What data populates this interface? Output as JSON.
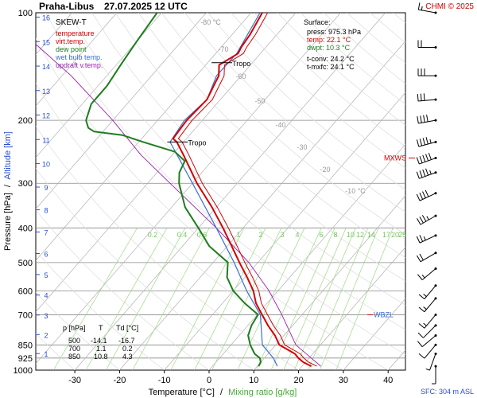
{
  "header": {
    "station": "Praha-Libus",
    "datetime": "27.07.2025 12 UTC",
    "credit": "CHMI © 2025"
  },
  "legend": {
    "title": "SKEW-T",
    "items": [
      {
        "label": "temperature",
        "color": "#d40000"
      },
      {
        "label": "virt.temp.",
        "color": "#d40000"
      },
      {
        "label": "dew point",
        "color": "#1e7d1e"
      },
      {
        "label": "wet bulb temp.",
        "color": "#3a6fd8"
      },
      {
        "label": "updraft v.temp.",
        "color": "#9b1fb0"
      }
    ]
  },
  "surface": {
    "title": "Surface:",
    "press": "press: 975.3 hPa",
    "temp": "temp: 22.1 °C",
    "dwpt": "dwpt: 10.3 °C",
    "tconv": "t-conv: 24.2 °C",
    "tmxfc": "t-mxfc: 24.1 °C"
  },
  "levels_table": {
    "headers": [
      "p [hPa]",
      "T",
      "Td [°C]"
    ],
    "rows": [
      [
        "500",
        "-14.1",
        "-16.7"
      ],
      [
        "700",
        "1.1",
        "0.2"
      ],
      [
        "850",
        "10.8",
        "4.3"
      ]
    ]
  },
  "annotations": {
    "tropo": "Tropo",
    "mxws": "MXWS",
    "wbzl": "WBZL",
    "sfc": "SFC: 304 m ASL"
  },
  "chart_data": {
    "type": "skew-t",
    "xlabel_main": "Temperature [°C]",
    "xlabel_sep": "/",
    "xlabel_mix": "Mixing ratio [g/kg]",
    "ylabel_main": "Pressure [hPa]",
    "ylabel_sep": "/",
    "ylabel_alt": "Altitude [km]",
    "x_ticks": [
      -30,
      -20,
      -10,
      0,
      10,
      20,
      30,
      40
    ],
    "p_ticks": [
      100,
      200,
      300,
      400,
      500,
      600,
      700,
      850,
      925,
      1000
    ],
    "km_ticks": [
      1,
      2,
      3,
      4,
      5,
      6,
      7,
      8,
      9,
      10,
      11,
      12,
      13,
      14,
      15,
      16
    ],
    "isotherm_labels": [
      "-80 °C",
      "-70",
      "-60",
      "-50",
      "-40",
      "-30",
      "-20",
      "-10 °C"
    ],
    "mixing_ratio_labels": [
      "0.2",
      "0.4",
      "0.6",
      "1",
      "2",
      "3",
      "4",
      "6",
      "8",
      "10",
      "12",
      "14",
      "17",
      "20",
      "25"
    ],
    "colors": {
      "temperature": "#d40000",
      "dewpoint": "#1e7d1e",
      "wetbulb": "#3a6fd8",
      "updraft": "#9b1fb0",
      "mixing": "#9fd88a",
      "isobar": "#888888",
      "isotherm": "#b0b0b0"
    },
    "temperature": [
      [
        975,
        22.1
      ],
      [
        950,
        19.5
      ],
      [
        925,
        17.6
      ],
      [
        900,
        16.0
      ],
      [
        850,
        10.8
      ],
      [
        800,
        8.0
      ],
      [
        750,
        4.5
      ],
      [
        700,
        1.1
      ],
      [
        650,
        -2.5
      ],
      [
        600,
        -5.5
      ],
      [
        550,
        -9.5
      ],
      [
        500,
        -14.1
      ],
      [
        450,
        -19.0
      ],
      [
        400,
        -24.5
      ],
      [
        350,
        -31.0
      ],
      [
        300,
        -39.0
      ],
      [
        250,
        -47.5
      ],
      [
        230,
        -51.5
      ],
      [
        225,
        -53.0
      ],
      [
        200,
        -53.5
      ],
      [
        175,
        -53.0
      ],
      [
        150,
        -55.0
      ],
      [
        140,
        -57.0
      ],
      [
        130,
        -55.0
      ],
      [
        125,
        -55.5
      ],
      [
        115,
        -56.0
      ],
      [
        100,
        -57.5
      ]
    ],
    "dewpoint": [
      [
        975,
        10.3
      ],
      [
        950,
        10.0
      ],
      [
        925,
        9.0
      ],
      [
        900,
        7.0
      ],
      [
        850,
        4.3
      ],
      [
        800,
        2.0
      ],
      [
        750,
        0.8
      ],
      [
        700,
        0.2
      ],
      [
        650,
        -5.0
      ],
      [
        600,
        -10.0
      ],
      [
        550,
        -14.0
      ],
      [
        500,
        -16.7
      ],
      [
        450,
        -24.0
      ],
      [
        400,
        -30.0
      ],
      [
        350,
        -37.0
      ],
      [
        300,
        -43.0
      ],
      [
        280,
        -45.0
      ],
      [
        260,
        -46.0
      ],
      [
        245,
        -50.0
      ],
      [
        230,
        -59.0
      ],
      [
        220,
        -65.0
      ],
      [
        215,
        -72.0
      ],
      [
        210,
        -74.0
      ],
      [
        200,
        -76.0
      ],
      [
        180,
        -78.0
      ],
      [
        160,
        -78.0
      ],
      [
        140,
        -79.0
      ],
      [
        120,
        -80.0
      ],
      [
        100,
        -81.0
      ]
    ],
    "wetbulb": [
      [
        975,
        14.5
      ],
      [
        925,
        12.0
      ],
      [
        850,
        7.0
      ],
      [
        700,
        0.7
      ],
      [
        600,
        -7.0
      ],
      [
        500,
        -15.3
      ],
      [
        400,
        -26.0
      ],
      [
        300,
        -40.0
      ],
      [
        230,
        -53.0
      ],
      [
        200,
        -54.0
      ],
      [
        175,
        -53.0
      ],
      [
        150,
        -55.5
      ],
      [
        130,
        -55.3
      ],
      [
        100,
        -58.0
      ]
    ],
    "updraft": [
      [
        975,
        24.2
      ],
      [
        850,
        14.5
      ],
      [
        700,
        5.5
      ],
      [
        600,
        -2.0
      ],
      [
        500,
        -12.0
      ],
      [
        400,
        -26.0
      ],
      [
        300,
        -45.0
      ],
      [
        250,
        -57.0
      ],
      [
        200,
        -70.0
      ],
      [
        150,
        -88.0
      ],
      [
        100,
        -116.0
      ]
    ],
    "tropopause_hpa": [
      230,
      138
    ],
    "mxws_hpa": 255,
    "wbzl_hpa": 700,
    "wind_barbs": [
      {
        "p": 100,
        "dir": 280,
        "kt": 15
      },
      {
        "p": 125,
        "dir": 270,
        "kt": 20
      },
      {
        "p": 150,
        "dir": 270,
        "kt": 30
      },
      {
        "p": 175,
        "dir": 265,
        "kt": 30
      },
      {
        "p": 200,
        "dir": 260,
        "kt": 40
      },
      {
        "p": 230,
        "dir": 255,
        "kt": 45
      },
      {
        "p": 255,
        "dir": 250,
        "kt": 50
      },
      {
        "p": 280,
        "dir": 250,
        "kt": 45
      },
      {
        "p": 320,
        "dir": 245,
        "kt": 40
      },
      {
        "p": 370,
        "dir": 240,
        "kt": 35
      },
      {
        "p": 420,
        "dir": 245,
        "kt": 25
      },
      {
        "p": 470,
        "dir": 240,
        "kt": 20
      },
      {
        "p": 520,
        "dir": 230,
        "kt": 15
      },
      {
        "p": 580,
        "dir": 220,
        "kt": 15
      },
      {
        "p": 630,
        "dir": 220,
        "kt": 15
      },
      {
        "p": 700,
        "dir": 220,
        "kt": 15
      },
      {
        "p": 750,
        "dir": 225,
        "kt": 10
      },
      {
        "p": 800,
        "dir": 230,
        "kt": 10
      },
      {
        "p": 850,
        "dir": 220,
        "kt": 10
      },
      {
        "p": 900,
        "dir": 200,
        "kt": 5
      },
      {
        "p": 975,
        "dir": 180,
        "kt": 5
      }
    ]
  }
}
